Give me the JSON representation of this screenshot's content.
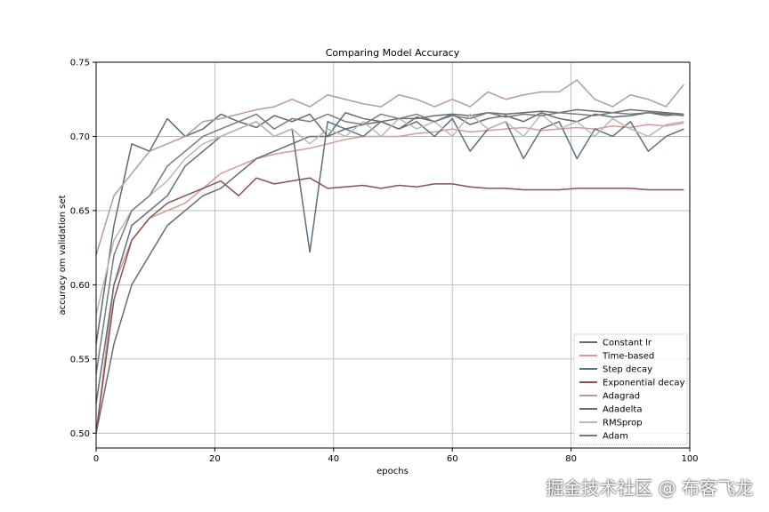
{
  "chart_data": {
    "type": "line",
    "title": "Comparing Model Accuracy",
    "xlabel": "epochs",
    "ylabel": "accuracy om validation set",
    "xlim": [
      0,
      100
    ],
    "ylim": [
      0.49,
      0.75
    ],
    "xticks": [
      0,
      20,
      40,
      60,
      80,
      100
    ],
    "yticks": [
      0.5,
      0.55,
      0.6,
      0.65,
      0.7,
      0.75
    ],
    "grid": true,
    "legend_position": "lower-right",
    "x": [
      0,
      3,
      6,
      9,
      12,
      15,
      18,
      21,
      24,
      27,
      30,
      33,
      36,
      39,
      42,
      45,
      48,
      51,
      54,
      57,
      60,
      63,
      66,
      69,
      72,
      75,
      78,
      81,
      84,
      87,
      90,
      93,
      96,
      99
    ],
    "series": [
      {
        "name": "Constant lr",
        "color": "#5f6a73",
        "values": [
          0.56,
          0.64,
          0.695,
          0.69,
          0.712,
          0.7,
          0.705,
          0.715,
          0.71,
          0.706,
          0.714,
          0.71,
          0.715,
          0.7,
          0.716,
          0.712,
          0.71,
          0.705,
          0.713,
          0.71,
          0.715,
          0.708,
          0.712,
          0.714,
          0.71,
          0.716,
          0.712,
          0.71,
          0.715,
          0.713,
          0.714,
          0.716,
          0.715,
          0.714
        ]
      },
      {
        "name": "Time-based",
        "color": "#d49a9a",
        "values": [
          0.5,
          0.6,
          0.63,
          0.645,
          0.65,
          0.655,
          0.665,
          0.675,
          0.68,
          0.685,
          0.688,
          0.69,
          0.692,
          0.695,
          0.698,
          0.7,
          0.7,
          0.7,
          0.702,
          0.703,
          0.705,
          0.703,
          0.704,
          0.705,
          0.706,
          0.704,
          0.705,
          0.706,
          0.705,
          0.707,
          0.706,
          0.708,
          0.707,
          0.709
        ]
      },
      {
        "name": "Step decay",
        "color": "#5d7080",
        "values": [
          0.52,
          0.6,
          0.64,
          0.65,
          0.66,
          0.68,
          0.69,
          0.7,
          0.705,
          0.71,
          0.7,
          0.705,
          0.622,
          0.71,
          0.705,
          0.7,
          0.71,
          0.705,
          0.71,
          0.7,
          0.712,
          0.69,
          0.705,
          0.71,
          0.685,
          0.705,
          0.71,
          0.685,
          0.705,
          0.7,
          0.71,
          0.69,
          0.7,
          0.705
        ]
      },
      {
        "name": "Exponential decay",
        "color": "#8b5050",
        "values": [
          0.5,
          0.59,
          0.63,
          0.645,
          0.655,
          0.66,
          0.665,
          0.67,
          0.66,
          0.672,
          0.668,
          0.67,
          0.672,
          0.665,
          0.666,
          0.667,
          0.665,
          0.667,
          0.666,
          0.668,
          0.668,
          0.666,
          0.665,
          0.665,
          0.664,
          0.664,
          0.664,
          0.665,
          0.665,
          0.665,
          0.665,
          0.664,
          0.664,
          0.664
        ]
      },
      {
        "name": "Adagrad",
        "color": "#b49a9e",
        "values": [
          0.62,
          0.66,
          0.675,
          0.69,
          0.695,
          0.7,
          0.71,
          0.712,
          0.715,
          0.718,
          0.72,
          0.725,
          0.72,
          0.728,
          0.725,
          0.722,
          0.72,
          0.728,
          0.725,
          0.72,
          0.725,
          0.72,
          0.73,
          0.725,
          0.728,
          0.73,
          0.73,
          0.738,
          0.725,
          0.72,
          0.728,
          0.725,
          0.72,
          0.735
        ]
      },
      {
        "name": "Adadelta",
        "color": "#6b6b6b",
        "values": [
          0.5,
          0.56,
          0.6,
          0.62,
          0.64,
          0.65,
          0.66,
          0.665,
          0.675,
          0.685,
          0.69,
          0.695,
          0.7,
          0.7,
          0.705,
          0.708,
          0.71,
          0.712,
          0.712,
          0.714,
          0.715,
          0.714,
          0.716,
          0.715,
          0.716,
          0.717,
          0.716,
          0.718,
          0.717,
          0.716,
          0.718,
          0.717,
          0.716,
          0.715
        ]
      },
      {
        "name": "RMSprop",
        "color": "#b8b8b8",
        "values": [
          0.58,
          0.63,
          0.65,
          0.66,
          0.67,
          0.685,
          0.695,
          0.7,
          0.705,
          0.71,
          0.7,
          0.705,
          0.695,
          0.705,
          0.7,
          0.71,
          0.7,
          0.712,
          0.705,
          0.71,
          0.7,
          0.715,
          0.705,
          0.71,
          0.7,
          0.715,
          0.705,
          0.71,
          0.7,
          0.712,
          0.705,
          0.7,
          0.708,
          0.71
        ]
      },
      {
        "name": "Adam",
        "color": "#7a7a7a",
        "values": [
          0.54,
          0.62,
          0.65,
          0.66,
          0.68,
          0.69,
          0.7,
          0.705,
          0.71,
          0.715,
          0.705,
          0.712,
          0.71,
          0.715,
          0.71,
          0.708,
          0.715,
          0.712,
          0.715,
          0.71,
          0.714,
          0.712,
          0.716,
          0.713,
          0.715,
          0.714,
          0.716,
          0.715,
          0.714,
          0.716,
          0.715,
          0.716,
          0.714,
          0.715
        ]
      }
    ]
  },
  "watermark": "掘金技术社区 @ 布客飞龙"
}
